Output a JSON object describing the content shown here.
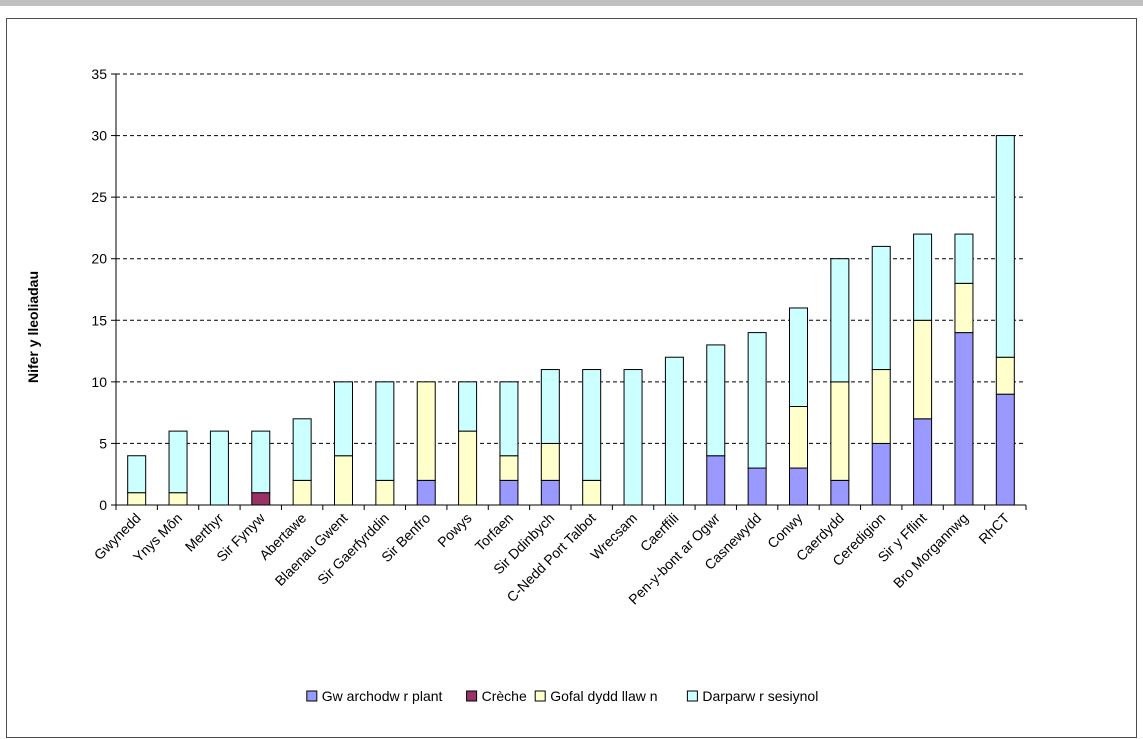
{
  "chart_data": {
    "type": "bar",
    "stacked": true,
    "title": "",
    "xlabel": "",
    "ylabel": "Nifer y lleoliadau",
    "ylim": [
      0,
      35
    ],
    "yticks": [
      0,
      5,
      10,
      15,
      20,
      25,
      30,
      35
    ],
    "grid": true,
    "legend_position": "bottom",
    "categories": [
      "Gwynedd",
      "Ynys Môn",
      "Merthyr",
      "Sir Fynyw",
      "Abertawe",
      "Blaenau Gwent",
      "Sir Gaerfyrddin",
      "Sir Benfro",
      "Powys",
      "Torfaen",
      "Sir Ddinbych",
      "C-Nedd Port Talbot",
      "Wrecsam",
      "Caerffili",
      "Pen-y-bont ar Ogwr",
      "Casnewydd",
      "Conwy",
      "Caerdydd",
      "Ceredigion",
      "Sir y Fflint",
      "Bro Morgannwg",
      "RhCT"
    ],
    "series": [
      {
        "name": "Gw archodw r plant",
        "color": "#9999ff",
        "values": [
          0,
          0,
          0,
          0,
          0,
          0,
          0,
          2,
          0,
          2,
          2,
          0,
          0,
          0,
          4,
          3,
          3,
          2,
          5,
          7,
          14,
          9
        ]
      },
      {
        "name": "Crèche",
        "color": "#993366",
        "values": [
          0,
          0,
          0,
          1,
          0,
          0,
          0,
          0,
          0,
          0,
          0,
          0,
          0,
          0,
          0,
          0,
          0,
          0,
          0,
          0,
          0,
          0
        ]
      },
      {
        "name": "Gofal dydd llaw n",
        "color": "#ffffcc",
        "values": [
          1,
          1,
          0,
          0,
          2,
          4,
          2,
          8,
          6,
          2,
          3,
          2,
          0,
          0,
          0,
          0,
          5,
          8,
          6,
          8,
          4,
          3
        ]
      },
      {
        "name": "Darparw r sesiynol",
        "color": "#ccffff",
        "values": [
          3,
          5,
          6,
          5,
          5,
          6,
          8,
          0,
          4,
          6,
          6,
          9,
          11,
          12,
          9,
          11,
          8,
          10,
          10,
          7,
          4,
          18
        ]
      }
    ]
  }
}
